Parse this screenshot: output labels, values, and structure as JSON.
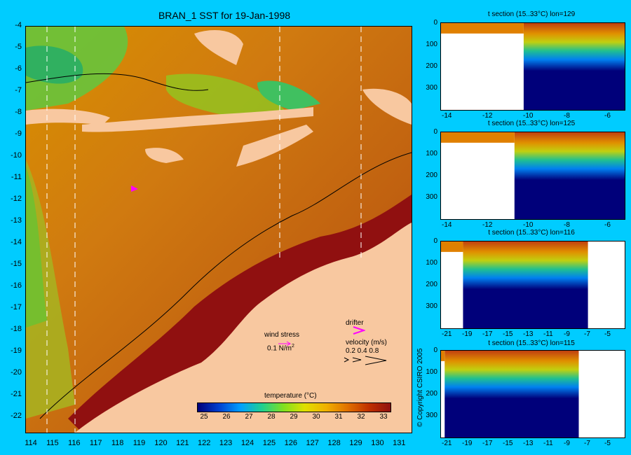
{
  "map": {
    "title": "BRAN_1 SST for 19-Jan-1998",
    "lat_labels": [
      "-4",
      "-5",
      "-6",
      "-7",
      "-8",
      "-9",
      "-10",
      "-11",
      "-12",
      "-13",
      "-14",
      "-15",
      "-16",
      "-17",
      "-18",
      "-19",
      "-20",
      "-21",
      "-22"
    ],
    "lon_labels": [
      "114",
      "115",
      "116",
      "117",
      "118",
      "119",
      "120",
      "121",
      "122",
      "123",
      "124",
      "125",
      "126",
      "127",
      "128",
      "129",
      "130",
      "131"
    ],
    "wind_stress_label": "wind stress",
    "wind_stress_scale": "0.1 N/m",
    "wind_stress_exp": "2",
    "drifter_label": "drifter",
    "velocity_label": "velocity (m/s)",
    "velocity_scale": "0.2 0.4 0.8",
    "colorbar_title": "temperature (°C)",
    "colorbar_ticks": [
      "25",
      "26",
      "27",
      "28",
      "29",
      "30",
      "31",
      "32",
      "33"
    ],
    "colorbar_colors": [
      "#00007a",
      "#0040d0",
      "#00a0ff",
      "#20d090",
      "#80e020",
      "#e0e000",
      "#f0b000",
      "#e07000",
      "#c03000",
      "#901010"
    ]
  },
  "sections": [
    {
      "title": "t section (15..33°C) lon=129",
      "y_ticks": [
        "0",
        "100",
        "200",
        "300"
      ],
      "x_ticks": [
        "-14",
        "-12",
        "-10",
        "-8",
        "-6"
      ]
    },
    {
      "title": "t section (15..33°C) lon=125",
      "y_ticks": [
        "0",
        "100",
        "200",
        "300"
      ],
      "x_ticks": [
        "-14",
        "-12",
        "-10",
        "-8",
        "-6"
      ]
    },
    {
      "title": "t section (15..33°C) lon=116",
      "y_ticks": [
        "0",
        "100",
        "200",
        "300"
      ],
      "x_ticks": [
        "-21",
        "-19",
        "-17",
        "-15",
        "-13",
        "-11",
        "-9",
        "-7",
        "-5"
      ]
    },
    {
      "title": "t section (15..33°C) lon=115",
      "y_ticks": [
        "0",
        "100",
        "200",
        "300"
      ],
      "x_ticks": [
        "-21",
        "-19",
        "-17",
        "-15",
        "-13",
        "-11",
        "-9",
        "-7",
        "-5"
      ]
    }
  ],
  "copyright": "© Copyright CSIRO 2005"
}
